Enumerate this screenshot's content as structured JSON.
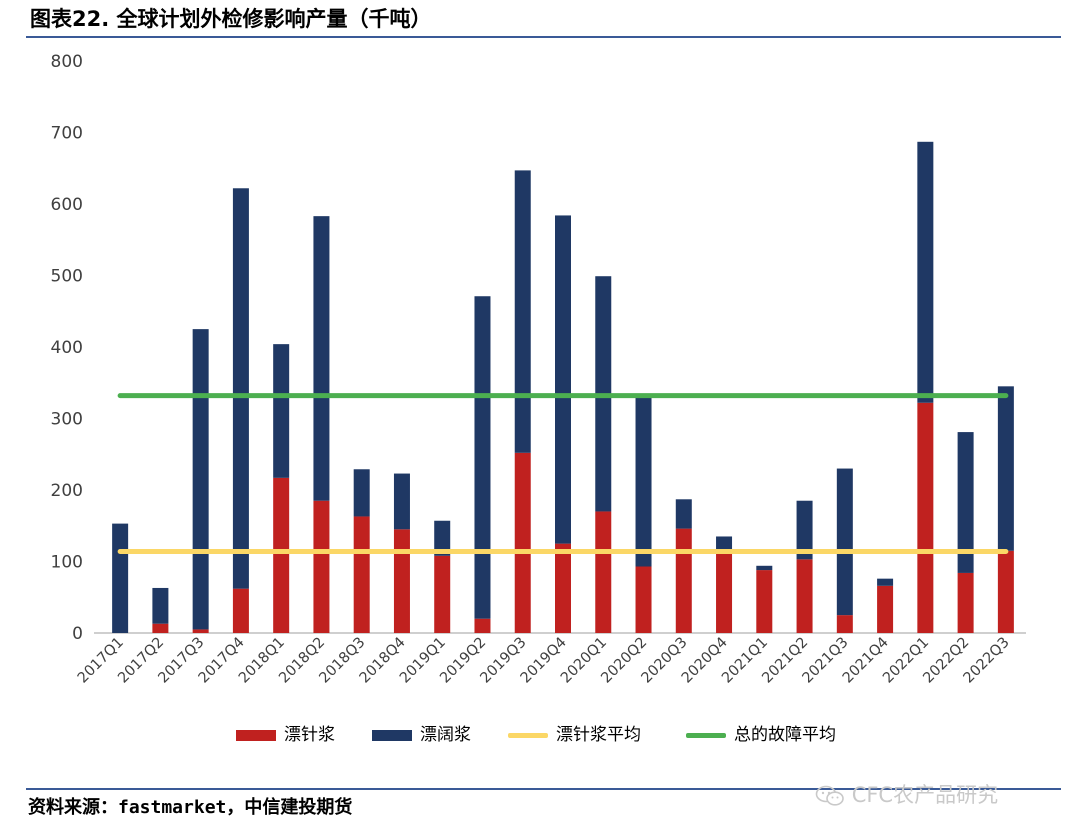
{
  "figure": {
    "title": "图表22. 全球计划外检修影响产量（千吨）",
    "source": "资料来源：fastmarket，中信建投期货",
    "watermark": "CFC农产品研究"
  },
  "colors": {
    "needle": "#c0211f",
    "broad": "#1f3864",
    "needle_avg": "#fbd766",
    "total_avg": "#4caf50",
    "rule": "#3a5a97"
  },
  "chart_data": {
    "type": "bar",
    "stacked": true,
    "categories": [
      "2017Q1",
      "2017Q2",
      "2017Q3",
      "2017Q4",
      "2018Q1",
      "2018Q2",
      "2018Q3",
      "2018Q4",
      "2019Q1",
      "2019Q2",
      "2019Q3",
      "2019Q4",
      "2020Q1",
      "2020Q2",
      "2020Q3",
      "2020Q4",
      "2021Q1",
      "2021Q2",
      "2021Q3",
      "2021Q4",
      "2022Q1",
      "2022Q2",
      "2022Q3"
    ],
    "series": [
      {
        "name": "漂针浆",
        "type": "bar",
        "color": "#c0211f",
        "values": [
          0,
          13,
          5,
          62,
          217,
          185,
          163,
          145,
          108,
          20,
          252,
          125,
          170,
          93,
          146,
          113,
          88,
          103,
          25,
          66,
          322,
          84,
          115
        ]
      },
      {
        "name": "漂阔浆",
        "type": "bar",
        "color": "#1f3864",
        "values": [
          153,
          50,
          420,
          560,
          187,
          398,
          66,
          78,
          49,
          451,
          395,
          459,
          329,
          237,
          41,
          22,
          6,
          82,
          205,
          10,
          365,
          197,
          230
        ]
      },
      {
        "name": "漂针浆平均",
        "type": "line",
        "color": "#fbd766",
        "value": 114
      },
      {
        "name": "总的故障平均",
        "type": "line",
        "color": "#4caf50",
        "value": 332
      }
    ],
    "ylim": [
      0,
      800
    ],
    "yticks": [
      0,
      100,
      200,
      300,
      400,
      500,
      600,
      700,
      800
    ],
    "grid": false,
    "legend_position": "bottom"
  }
}
